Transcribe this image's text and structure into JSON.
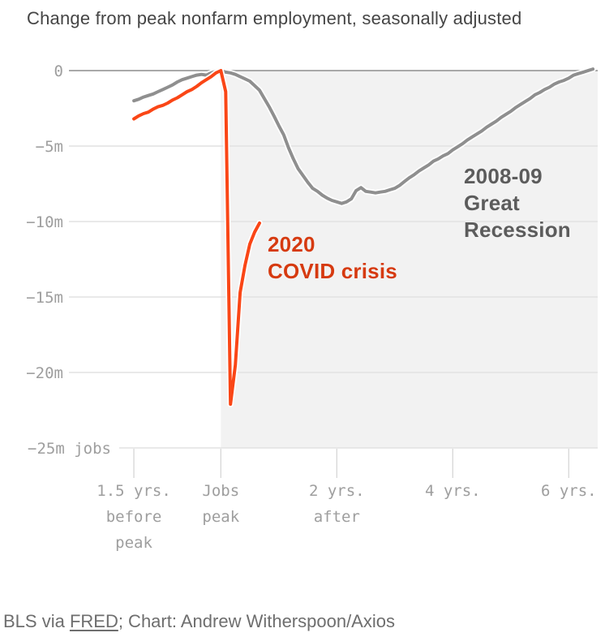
{
  "title": "Change from peak nonfarm employment, seasonally adjusted",
  "footer": {
    "prefix": "BLS via ",
    "link_label": "FRED",
    "suffix": "; Chart: Andrew Witherspoon/Axios"
  },
  "colors": {
    "recession_line": "#8f8f8f",
    "covid_line": "#fa4616",
    "recession_label": "#5c5c5c",
    "covid_label": "#d63a10",
    "shade": "#f2f2f2",
    "grid": "#e2e2e2",
    "zero_line": "#a9a9a9",
    "tick_mark": "#d9d9d9",
    "axis_text": "#9e9e9e",
    "title_text": "#454545",
    "footer_text": "#6e6e6e",
    "halo": "#ffffff"
  },
  "chart_data": {
    "type": "line",
    "title": "Change from peak nonfarm employment, seasonally adjusted",
    "x_unit": "years relative to jobs peak (months used as data index)",
    "y_unit": "change from peak nonfarm employment, millions of jobs",
    "ylim": [
      -25,
      0
    ],
    "x_range_months": [
      -18,
      78
    ],
    "grid": true,
    "legend_position": "inline-annotations",
    "x_axis": {
      "ticks": [
        {
          "month": -18,
          "lines": [
            "1.5 yrs.",
            "before",
            "peak"
          ]
        },
        {
          "month": 0,
          "lines": [
            "Jobs",
            "peak"
          ]
        },
        {
          "month": 24,
          "lines": [
            "2 yrs.",
            "after"
          ]
        },
        {
          "month": 48,
          "lines": [
            "4 yrs."
          ]
        },
        {
          "month": 72,
          "lines": [
            "6 yrs."
          ]
        }
      ]
    },
    "y_axis": {
      "ticks": [
        {
          "value": 0,
          "label": "0"
        },
        {
          "value": -5,
          "label": "−5m"
        },
        {
          "value": -10,
          "label": "−10m"
        },
        {
          "value": -15,
          "label": "−15m"
        },
        {
          "value": -20,
          "label": "−20m"
        },
        {
          "value": -25,
          "label": "−25m jobs"
        }
      ]
    },
    "shaded_region": {
      "from_month": 0,
      "note": "period after jobs peak"
    },
    "series": [
      {
        "id": "great-recession",
        "name": "2008-09 Great Recession",
        "color": "#8f8f8f",
        "start_month": -18,
        "values": [
          -2.0,
          -1.9,
          -1.75,
          -1.65,
          -1.55,
          -1.4,
          -1.25,
          -1.1,
          -0.95,
          -0.75,
          -0.6,
          -0.5,
          -0.4,
          -0.3,
          -0.25,
          -0.3,
          -0.15,
          -0.05,
          0,
          -0.1,
          -0.15,
          -0.25,
          -0.4,
          -0.55,
          -0.7,
          -1.0,
          -1.3,
          -1.85,
          -2.4,
          -3.0,
          -3.65,
          -4.25,
          -5.1,
          -5.85,
          -6.5,
          -6.95,
          -7.4,
          -7.8,
          -8.0,
          -8.25,
          -8.45,
          -8.6,
          -8.7,
          -8.8,
          -8.7,
          -8.5,
          -7.95,
          -7.75,
          -8.0,
          -8.05,
          -8.1,
          -8.05,
          -8.0,
          -7.9,
          -7.8,
          -7.6,
          -7.35,
          -7.1,
          -6.9,
          -6.65,
          -6.45,
          -6.25,
          -6.0,
          -5.85,
          -5.65,
          -5.5,
          -5.25,
          -5.05,
          -4.85,
          -4.6,
          -4.4,
          -4.2,
          -4.0,
          -3.75,
          -3.55,
          -3.35,
          -3.1,
          -2.9,
          -2.7,
          -2.45,
          -2.25,
          -2.05,
          -1.85,
          -1.6,
          -1.45,
          -1.25,
          -1.1,
          -0.9,
          -0.75,
          -0.65,
          -0.5,
          -0.3,
          -0.2,
          -0.1,
          0,
          0.1
        ]
      },
      {
        "id": "covid",
        "name": "2020 COVID crisis",
        "color": "#fa4616",
        "start_month": -18,
        "values": [
          -3.2,
          -3.0,
          -2.85,
          -2.75,
          -2.55,
          -2.4,
          -2.3,
          -2.15,
          -1.95,
          -1.8,
          -1.6,
          -1.4,
          -1.25,
          -1.05,
          -0.8,
          -0.6,
          -0.4,
          -0.15,
          0,
          -1.4,
          -22.1,
          -19.5,
          -14.7,
          -12.9,
          -11.5,
          -10.7,
          -10.1
        ]
      }
    ],
    "annotations": [
      {
        "id": "great-recession",
        "lines": [
          "2008-09",
          "Great",
          "Recession"
        ]
      },
      {
        "id": "covid",
        "lines": [
          "2020",
          "COVID crisis"
        ]
      }
    ]
  }
}
